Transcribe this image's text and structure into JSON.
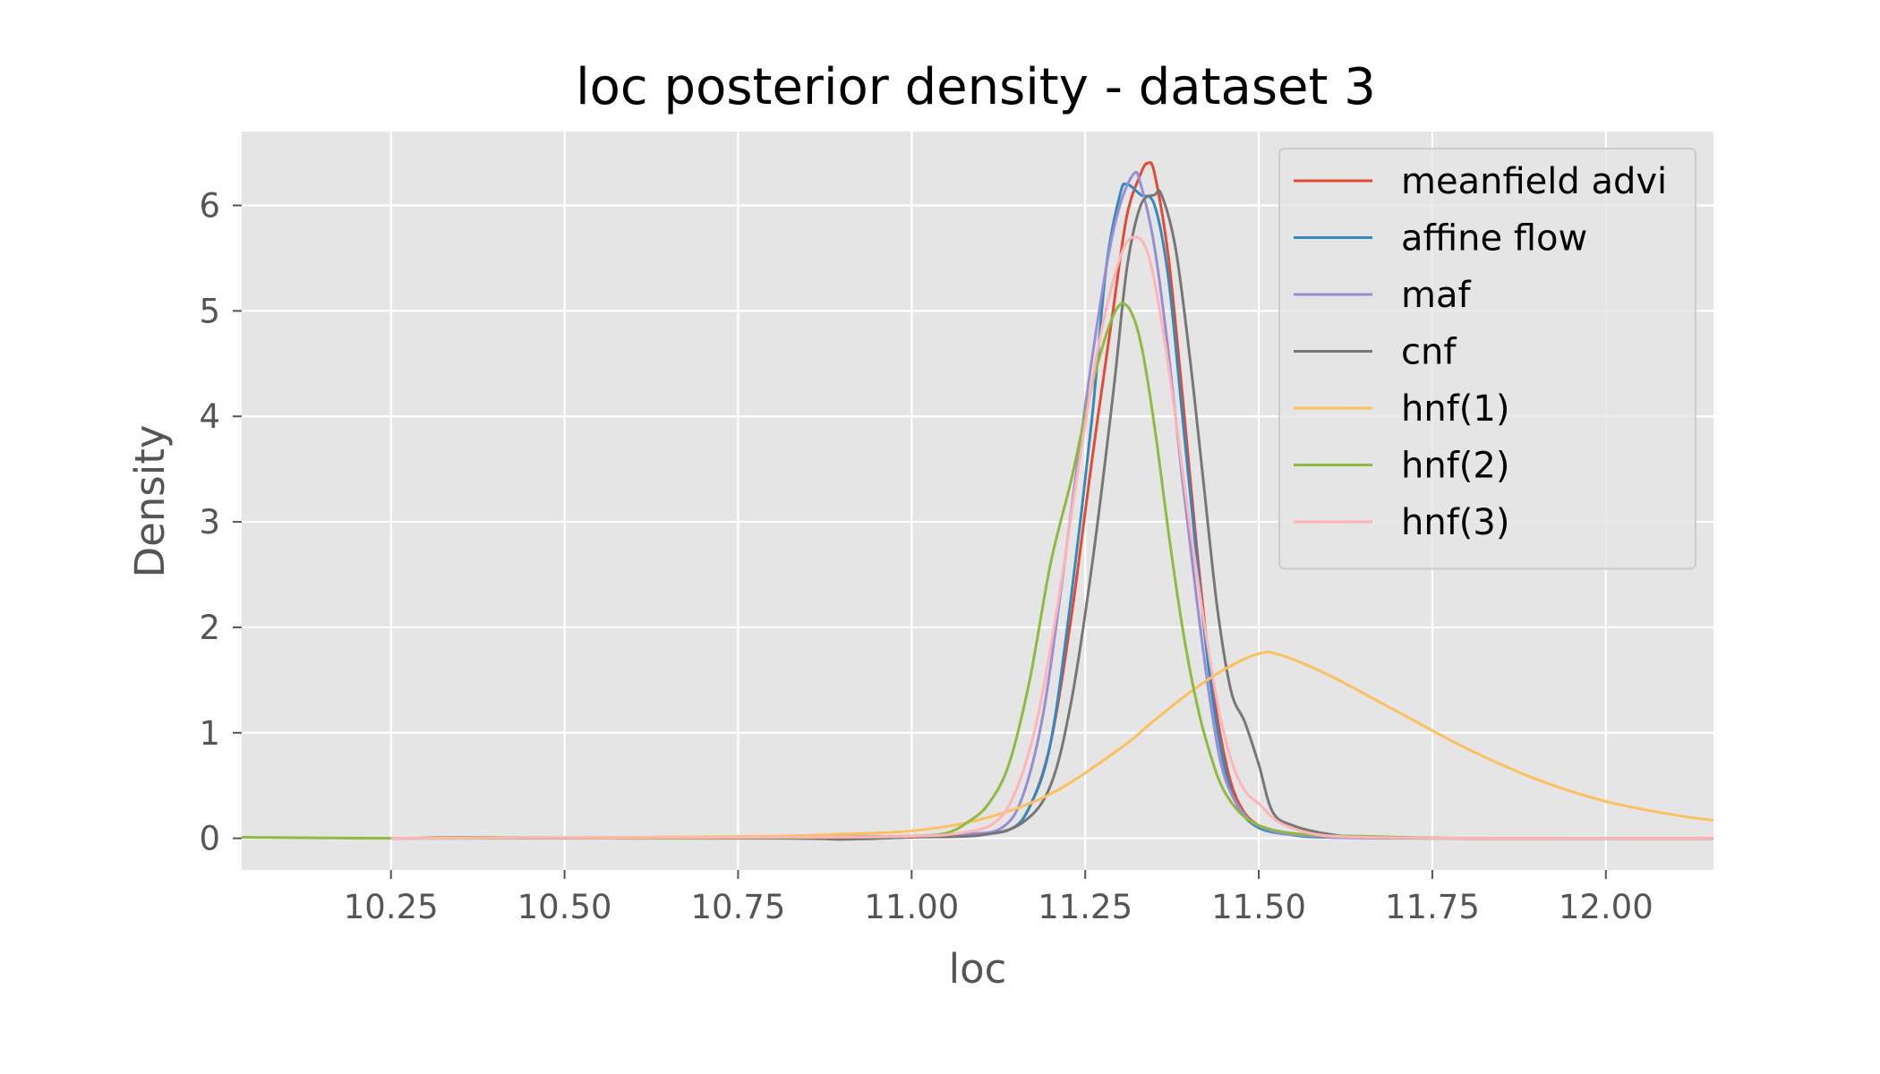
{
  "chart_data": {
    "type": "line",
    "title": "loc posterior density - dataset 3",
    "xlabel": "loc",
    "ylabel": "Density",
    "xlim": [
      10.035,
      12.155
    ],
    "ylim": [
      -0.3,
      6.7
    ],
    "xticks": [
      10.25,
      10.5,
      10.75,
      11.0,
      11.25,
      11.5,
      11.75,
      12.0
    ],
    "xtick_labels": [
      "10.25",
      "10.50",
      "10.75",
      "11.00",
      "11.25",
      "11.50",
      "11.75",
      "12.00"
    ],
    "yticks": [
      0,
      1,
      2,
      3,
      4,
      5,
      6
    ],
    "ytick_labels": [
      "0",
      "1",
      "2",
      "3",
      "4",
      "5",
      "6"
    ],
    "grid": true,
    "legend_position": "top-right",
    "background": "#e5e5e5",
    "series": [
      {
        "name": "meanfield advi",
        "color": "#e24a33",
        "points": [
          [
            10.25,
            0.0
          ],
          [
            10.8,
            0.01
          ],
          [
            11.0,
            0.02
          ],
          [
            11.08,
            0.04
          ],
          [
            11.14,
            0.08
          ],
          [
            11.17,
            0.3
          ],
          [
            11.2,
            0.9
          ],
          [
            11.23,
            2.1
          ],
          [
            11.26,
            3.6
          ],
          [
            11.29,
            5.0
          ],
          [
            11.31,
            5.9
          ],
          [
            11.33,
            6.3
          ],
          [
            11.34,
            6.4
          ],
          [
            11.35,
            6.3
          ],
          [
            11.37,
            5.5
          ],
          [
            11.39,
            4.2
          ],
          [
            11.41,
            2.8
          ],
          [
            11.43,
            1.6
          ],
          [
            11.45,
            0.8
          ],
          [
            11.47,
            0.35
          ],
          [
            11.5,
            0.12
          ],
          [
            11.55,
            0.04
          ],
          [
            11.6,
            0.01
          ],
          [
            11.8,
            0.0
          ],
          [
            12.155,
            0.0
          ]
        ]
      },
      {
        "name": "affine flow",
        "color": "#348abd",
        "points": [
          [
            10.25,
            0.0
          ],
          [
            10.8,
            0.01
          ],
          [
            11.0,
            0.02
          ],
          [
            11.08,
            0.04
          ],
          [
            11.14,
            0.08
          ],
          [
            11.17,
            0.3
          ],
          [
            11.2,
            0.9
          ],
          [
            11.23,
            2.3
          ],
          [
            11.26,
            4.0
          ],
          [
            11.28,
            5.4
          ],
          [
            11.3,
            6.1
          ],
          [
            11.31,
            6.2
          ],
          [
            11.33,
            6.1
          ],
          [
            11.35,
            6.0
          ],
          [
            11.37,
            5.3
          ],
          [
            11.39,
            4.0
          ],
          [
            11.41,
            2.7
          ],
          [
            11.43,
            1.5
          ],
          [
            11.45,
            0.7
          ],
          [
            11.47,
            0.3
          ],
          [
            11.5,
            0.1
          ],
          [
            11.55,
            0.03
          ],
          [
            11.6,
            0.01
          ],
          [
            11.8,
            0.0
          ],
          [
            12.155,
            0.0
          ]
        ]
      },
      {
        "name": "maf",
        "color": "#988ed5",
        "points": [
          [
            10.25,
            0.0
          ],
          [
            10.8,
            0.01
          ],
          [
            11.0,
            0.02
          ],
          [
            11.08,
            0.04
          ],
          [
            11.13,
            0.1
          ],
          [
            11.16,
            0.4
          ],
          [
            11.19,
            1.2
          ],
          [
            11.22,
            2.6
          ],
          [
            11.25,
            4.1
          ],
          [
            11.28,
            5.4
          ],
          [
            11.3,
            6.0
          ],
          [
            11.32,
            6.3
          ],
          [
            11.33,
            6.2
          ],
          [
            11.35,
            5.6
          ],
          [
            11.37,
            4.6
          ],
          [
            11.39,
            3.4
          ],
          [
            11.41,
            2.3
          ],
          [
            11.43,
            1.3
          ],
          [
            11.45,
            0.6
          ],
          [
            11.48,
            0.22
          ],
          [
            11.52,
            0.07
          ],
          [
            11.58,
            0.02
          ],
          [
            11.7,
            0.0
          ],
          [
            12.155,
            0.0
          ]
        ]
      },
      {
        "name": "cnf",
        "color": "#777777",
        "points": [
          [
            10.25,
            0.0
          ],
          [
            10.8,
            0.0
          ],
          [
            10.9,
            -0.01
          ],
          [
            11.0,
            0.01
          ],
          [
            11.1,
            0.03
          ],
          [
            11.16,
            0.15
          ],
          [
            11.2,
            0.5
          ],
          [
            11.23,
            1.3
          ],
          [
            11.26,
            2.6
          ],
          [
            11.29,
            4.2
          ],
          [
            11.31,
            5.4
          ],
          [
            11.33,
            6.0
          ],
          [
            11.35,
            6.1
          ],
          [
            11.36,
            6.1
          ],
          [
            11.38,
            5.6
          ],
          [
            11.4,
            4.6
          ],
          [
            11.42,
            3.4
          ],
          [
            11.44,
            2.2
          ],
          [
            11.46,
            1.4
          ],
          [
            11.48,
            1.1
          ],
          [
            11.5,
            0.7
          ],
          [
            11.52,
            0.25
          ],
          [
            11.55,
            0.12
          ],
          [
            11.6,
            0.04
          ],
          [
            11.65,
            0.01
          ],
          [
            11.75,
            0.0
          ],
          [
            12.155,
            0.0
          ]
        ]
      },
      {
        "name": "hnf(1)",
        "color": "#fbc15e",
        "points": [
          [
            10.25,
            0.0
          ],
          [
            10.6,
            0.01
          ],
          [
            10.8,
            0.02
          ],
          [
            10.9,
            0.04
          ],
          [
            11.0,
            0.07
          ],
          [
            11.1,
            0.18
          ],
          [
            11.2,
            0.42
          ],
          [
            11.3,
            0.85
          ],
          [
            11.35,
            1.12
          ],
          [
            11.4,
            1.38
          ],
          [
            11.45,
            1.6
          ],
          [
            11.5,
            1.75
          ],
          [
            11.53,
            1.74
          ],
          [
            11.6,
            1.55
          ],
          [
            11.7,
            1.2
          ],
          [
            11.8,
            0.85
          ],
          [
            11.9,
            0.56
          ],
          [
            12.0,
            0.35
          ],
          [
            12.1,
            0.22
          ],
          [
            12.155,
            0.17
          ]
        ]
      },
      {
        "name": "hnf(2)",
        "color": "#8eba42",
        "points": [
          [
            10.035,
            0.01
          ],
          [
            10.25,
            0.0
          ],
          [
            10.35,
            0.01
          ],
          [
            10.6,
            0.0
          ],
          [
            10.9,
            0.01
          ],
          [
            11.0,
            0.02
          ],
          [
            11.05,
            0.05
          ],
          [
            11.08,
            0.15
          ],
          [
            11.11,
            0.32
          ],
          [
            11.14,
            0.7
          ],
          [
            11.17,
            1.5
          ],
          [
            11.2,
            2.6
          ],
          [
            11.23,
            3.4
          ],
          [
            11.26,
            4.3
          ],
          [
            11.29,
            4.95
          ],
          [
            11.31,
            5.05
          ],
          [
            11.33,
            4.7
          ],
          [
            11.35,
            3.9
          ],
          [
            11.37,
            2.9
          ],
          [
            11.39,
            2.0
          ],
          [
            11.41,
            1.3
          ],
          [
            11.43,
            0.8
          ],
          [
            11.45,
            0.45
          ],
          [
            11.48,
            0.2
          ],
          [
            11.52,
            0.08
          ],
          [
            11.58,
            0.03
          ],
          [
            11.65,
            0.02
          ],
          [
            11.8,
            0.0
          ],
          [
            12.155,
            0.0
          ]
        ]
      },
      {
        "name": "hnf(3)",
        "color": "#ffb5b8",
        "points": [
          [
            10.25,
            0.0
          ],
          [
            10.8,
            0.01
          ],
          [
            11.0,
            0.02
          ],
          [
            11.07,
            0.05
          ],
          [
            11.12,
            0.15
          ],
          [
            11.15,
            0.45
          ],
          [
            11.18,
            1.1
          ],
          [
            11.21,
            2.2
          ],
          [
            11.24,
            3.5
          ],
          [
            11.27,
            4.7
          ],
          [
            11.3,
            5.5
          ],
          [
            11.32,
            5.7
          ],
          [
            11.34,
            5.55
          ],
          [
            11.36,
            4.9
          ],
          [
            11.38,
            4.0
          ],
          [
            11.4,
            3.0
          ],
          [
            11.42,
            2.1
          ],
          [
            11.44,
            1.3
          ],
          [
            11.46,
            0.75
          ],
          [
            11.48,
            0.45
          ],
          [
            11.5,
            0.33
          ],
          [
            11.53,
            0.15
          ],
          [
            11.58,
            0.04
          ],
          [
            11.65,
            0.01
          ],
          [
            11.8,
            0.0
          ],
          [
            12.155,
            0.0
          ]
        ]
      }
    ]
  }
}
